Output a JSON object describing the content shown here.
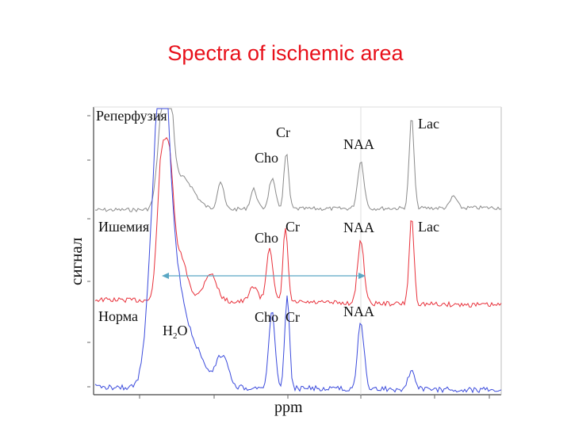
{
  "title": "Spectra of ischemic area",
  "chart_data": {
    "type": "line",
    "title": "Spectra of ischemic area",
    "xlabel": "ppm",
    "ylabel": "сигнал",
    "series": [
      {
        "name": "Реперфузия",
        "color": "#8a8a8a",
        "peaks": [
          {
            "label": "Cr",
            "text": "Cr"
          },
          {
            "label": "Cho",
            "text": "Cho"
          },
          {
            "label": "NAA",
            "text": "NAA"
          },
          {
            "label": "Lac",
            "text": "Lac"
          }
        ]
      },
      {
        "name": "Ишемия",
        "color": "#e8303a",
        "peaks": [
          {
            "label": "Cr",
            "text": "Cr"
          },
          {
            "label": "Cho",
            "text": "Cho"
          },
          {
            "label": "NAA",
            "text": "NAA"
          },
          {
            "label": "Lac",
            "text": "Lac"
          }
        ]
      },
      {
        "name": "Норма",
        "color": "#3a4adc",
        "peaks": [
          {
            "label": "Cho",
            "text": "Cho"
          },
          {
            "label": "Cr",
            "text": "Cr"
          },
          {
            "label": "NAA",
            "text": "NAA"
          }
        ]
      }
    ],
    "water_label": {
      "base": "H",
      "sub": "2",
      "rest": "O"
    }
  }
}
